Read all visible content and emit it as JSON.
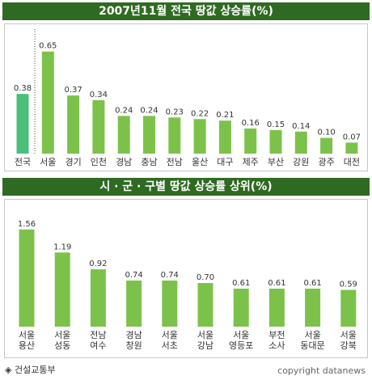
{
  "chart_data": [
    {
      "type": "bar",
      "title": "2007년11월 전국 땅값 상승률(%)",
      "categories": [
        "전국",
        "서울",
        "경기",
        "인천",
        "경남",
        "충남",
        "전남",
        "울산",
        "대구",
        "제주",
        "부산",
        "강원",
        "광주",
        "대전"
      ],
      "values": [
        0.38,
        0.65,
        0.37,
        0.34,
        0.24,
        0.24,
        0.23,
        0.22,
        0.21,
        0.16,
        0.15,
        0.14,
        0.1,
        0.07
      ],
      "value_labels": [
        "0.38",
        "0.65",
        "0.37",
        "0.34",
        "0.24",
        "0.24",
        "0.23",
        "0.22",
        "0.21",
        "0.16",
        "0.15",
        "0.14",
        "0.10",
        "0.07"
      ],
      "ylim": [
        0,
        0.7
      ],
      "grid": false,
      "colors": {
        "highlight": "#4bbf7a",
        "bar": "#7cc24a"
      }
    },
    {
      "type": "bar",
      "title": "시 · 군 · 구별 땅값 상승률 상위(%)",
      "categories": [
        [
          "서울",
          "용산"
        ],
        [
          "서울",
          "성동"
        ],
        [
          "전남",
          "여수"
        ],
        [
          "경남",
          "창원"
        ],
        [
          "서울",
          "서초"
        ],
        [
          "서울",
          "강남"
        ],
        [
          "서울",
          "영등포"
        ],
        [
          "부천",
          "소사"
        ],
        [
          "서울",
          "동대문"
        ],
        [
          "서울",
          "강북"
        ]
      ],
      "values": [
        1.56,
        1.19,
        0.92,
        0.74,
        0.74,
        0.7,
        0.61,
        0.61,
        0.61,
        0.59
      ],
      "value_labels": [
        "1.56",
        "1.19",
        "0.92",
        "0.74",
        "0.74",
        "0.70",
        "0.61",
        "0.61",
        "0.61",
        "0.59"
      ],
      "ylim": [
        0,
        1.7
      ],
      "grid": false,
      "colors": {
        "bar": "#7cc24a"
      }
    }
  ],
  "footer": {
    "source_icon": "diamond-icon",
    "source_symbol": "◈",
    "source": "건설교통부",
    "copyright": "copyright datanews"
  }
}
